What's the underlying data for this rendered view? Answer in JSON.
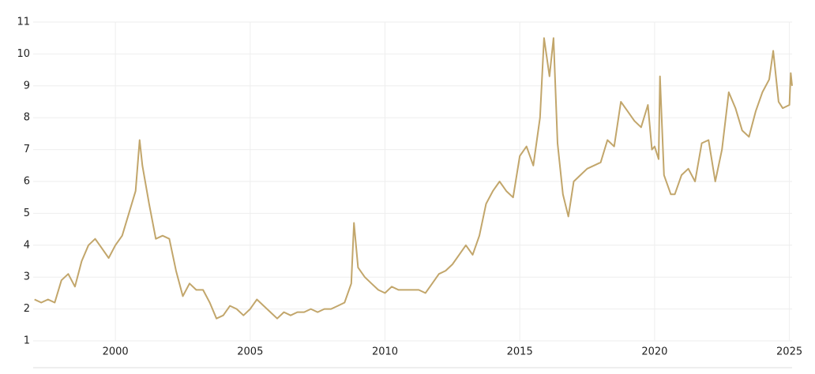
{
  "chart_data": {
    "type": "line",
    "x": [
      1997.0,
      1997.25,
      1997.5,
      1997.75,
      1998.0,
      1998.25,
      1998.5,
      1998.75,
      1999.0,
      1999.25,
      1999.5,
      1999.75,
      2000.0,
      2000.25,
      2000.5,
      2000.75,
      2000.9,
      2001.0,
      2001.25,
      2001.5,
      2001.75,
      2002.0,
      2002.25,
      2002.5,
      2002.75,
      2003.0,
      2003.25,
      2003.5,
      2003.75,
      2004.0,
      2004.25,
      2004.5,
      2004.75,
      2005.0,
      2005.25,
      2005.5,
      2005.75,
      2006.0,
      2006.25,
      2006.5,
      2006.75,
      2007.0,
      2007.25,
      2007.5,
      2007.75,
      2008.0,
      2008.25,
      2008.5,
      2008.75,
      2008.85,
      2009.0,
      2009.25,
      2009.5,
      2009.75,
      2010.0,
      2010.25,
      2010.5,
      2010.75,
      2011.0,
      2011.25,
      2011.5,
      2011.75,
      2012.0,
      2012.25,
      2012.5,
      2012.75,
      2013.0,
      2013.25,
      2013.5,
      2013.75,
      2014.0,
      2014.25,
      2014.5,
      2014.75,
      2015.0,
      2015.25,
      2015.5,
      2015.75,
      2015.9,
      2016.1,
      2016.25,
      2016.4,
      2016.6,
      2016.8,
      2017.0,
      2017.25,
      2017.5,
      2017.75,
      2018.0,
      2018.25,
      2018.5,
      2018.75,
      2019.0,
      2019.25,
      2019.5,
      2019.75,
      2019.9,
      2020.0,
      2020.15,
      2020.2,
      2020.35,
      2020.6,
      2020.75,
      2021.0,
      2021.25,
      2021.5,
      2021.75,
      2022.0,
      2022.25,
      2022.5,
      2022.75,
      2023.0,
      2023.25,
      2023.5,
      2023.75,
      2024.0,
      2024.25,
      2024.4,
      2024.6,
      2024.75,
      2025.0,
      2025.05,
      2025.1
    ],
    "series": [
      {
        "color": "#c2a66b",
        "values": [
          2.3,
          2.2,
          2.3,
          2.2,
          2.9,
          3.1,
          2.7,
          3.5,
          4.0,
          4.2,
          3.9,
          3.6,
          4.0,
          4.3,
          5.0,
          5.7,
          7.3,
          6.5,
          5.3,
          4.2,
          4.3,
          4.2,
          3.2,
          2.4,
          2.8,
          2.6,
          2.6,
          2.2,
          1.7,
          1.8,
          2.1,
          2.0,
          1.8,
          2.0,
          2.3,
          2.1,
          1.9,
          1.7,
          1.9,
          1.8,
          1.9,
          1.9,
          2.0,
          1.9,
          2.0,
          2.0,
          2.1,
          2.2,
          2.8,
          4.7,
          3.3,
          3.0,
          2.8,
          2.6,
          2.5,
          2.7,
          2.6,
          2.6,
          2.6,
          2.6,
          2.5,
          2.8,
          3.1,
          3.2,
          3.4,
          3.7,
          4.0,
          3.7,
          4.3,
          5.3,
          5.7,
          6.0,
          5.7,
          5.5,
          6.8,
          7.1,
          6.5,
          8.0,
          10.5,
          9.3,
          10.5,
          7.2,
          5.6,
          4.9,
          6.0,
          6.2,
          6.4,
          6.5,
          6.6,
          7.3,
          7.1,
          8.5,
          8.2,
          7.9,
          7.7,
          8.4,
          7.0,
          7.1,
          6.7,
          9.3,
          6.2,
          5.6,
          5.6,
          6.2,
          6.4,
          6.0,
          7.2,
          7.3,
          6.0,
          7.0,
          8.8,
          8.3,
          7.6,
          7.4,
          8.2,
          8.8,
          9.2,
          10.1,
          8.5,
          8.3,
          8.4,
          9.4,
          9.0
        ]
      }
    ],
    "xlim": [
      1996.95,
      2025.1
    ],
    "xticks": [
      2000,
      2005,
      2010,
      2015,
      2020,
      2025
    ],
    "ylim": [
      1,
      11
    ],
    "yticks": [
      1,
      2,
      3,
      4,
      5,
      6,
      7,
      8,
      9,
      10,
      11
    ],
    "grid": true
  }
}
